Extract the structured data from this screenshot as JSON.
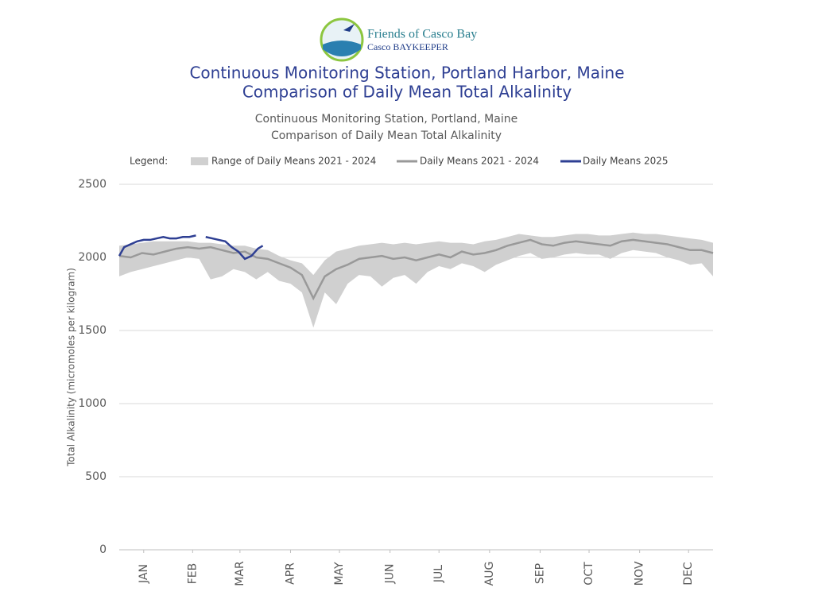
{
  "logo": {
    "name": "Friends of Casco Bay",
    "sub": "Casco BAYKEEPER"
  },
  "chart_data": {
    "type": "line",
    "title": "Continuous Monitoring Station, Portland Harbor, Maine",
    "subtitle": "Comparison of Daily Mean Total Alkalinity",
    "inner_title": "Continuous Monitoring Station, Portland, Maine",
    "inner_subtitle": "Comparison of Daily Mean Total Alkalinity",
    "legend_label": "Legend:",
    "y_label": "Total Alkalinity (micromoles per kilogram)",
    "xlim": [
      1,
      365
    ],
    "xticks": [
      {
        "value": 16,
        "label": "JAN"
      },
      {
        "value": 46,
        "label": "FEB"
      },
      {
        "value": 75,
        "label": "MAR"
      },
      {
        "value": 106,
        "label": "APR"
      },
      {
        "value": 136,
        "label": "MAY"
      },
      {
        "value": 167,
        "label": "JUN"
      },
      {
        "value": 197,
        "label": "JUL"
      },
      {
        "value": 228,
        "label": "AUG"
      },
      {
        "value": 259,
        "label": "SEP"
      },
      {
        "value": 289,
        "label": "OCT"
      },
      {
        "value": 320,
        "label": "NOV"
      },
      {
        "value": 350,
        "label": "DEC"
      }
    ],
    "ylim": [
      0,
      2500
    ],
    "yticks": [
      0,
      500,
      1000,
      1500,
      2000,
      2500
    ],
    "grid": true,
    "band": {
      "name": "Range of Daily Means 2021 - 2024",
      "color": "#d0d0d0",
      "x": [
        1,
        8,
        15,
        22,
        29,
        36,
        43,
        50,
        57,
        64,
        71,
        78,
        85,
        92,
        99,
        106,
        113,
        120,
        127,
        134,
        141,
        148,
        155,
        162,
        169,
        176,
        183,
        190,
        197,
        204,
        211,
        218,
        225,
        232,
        239,
        246,
        253,
        260,
        267,
        274,
        281,
        288,
        295,
        302,
        309,
        316,
        323,
        330,
        337,
        344,
        351,
        358,
        365
      ],
      "upper": [
        2080,
        2090,
        2100,
        2110,
        2110,
        2110,
        2110,
        2100,
        2100,
        2090,
        2080,
        2080,
        2060,
        2050,
        2010,
        1980,
        1960,
        1880,
        1980,
        2040,
        2060,
        2080,
        2090,
        2100,
        2090,
        2100,
        2090,
        2100,
        2110,
        2100,
        2100,
        2090,
        2110,
        2120,
        2140,
        2160,
        2150,
        2140,
        2140,
        2150,
        2160,
        2160,
        2150,
        2150,
        2160,
        2170,
        2160,
        2160,
        2150,
        2140,
        2130,
        2120,
        2100
      ],
      "lower": [
        1870,
        1900,
        1920,
        1940,
        1960,
        1980,
        2000,
        1990,
        1850,
        1870,
        1920,
        1900,
        1850,
        1900,
        1840,
        1820,
        1760,
        1520,
        1760,
        1680,
        1820,
        1880,
        1870,
        1800,
        1860,
        1880,
        1820,
        1900,
        1940,
        1920,
        1960,
        1940,
        1900,
        1950,
        1980,
        2010,
        2030,
        1990,
        2000,
        2020,
        2030,
        2020,
        2020,
        1990,
        2030,
        2050,
        2040,
        2030,
        2000,
        1980,
        1950,
        1960,
        1870
      ]
    },
    "series": [
      {
        "name": "Daily Means 2021 - 2024",
        "color": "#999999",
        "x": [
          1,
          8,
          15,
          22,
          29,
          36,
          43,
          50,
          57,
          64,
          71,
          78,
          85,
          92,
          99,
          106,
          113,
          120,
          127,
          134,
          141,
          148,
          155,
          162,
          169,
          176,
          183,
          190,
          197,
          204,
          211,
          218,
          225,
          232,
          239,
          246,
          253,
          260,
          267,
          274,
          281,
          288,
          295,
          302,
          309,
          316,
          323,
          330,
          337,
          344,
          351,
          358,
          365
        ],
        "values": [
          2010,
          2000,
          2030,
          2020,
          2040,
          2060,
          2070,
          2060,
          2070,
          2050,
          2030,
          2040,
          2000,
          1990,
          1960,
          1930,
          1880,
          1720,
          1870,
          1920,
          1950,
          1990,
          2000,
          2010,
          1990,
          2000,
          1980,
          2000,
          2020,
          2000,
          2040,
          2020,
          2030,
          2050,
          2080,
          2100,
          2120,
          2090,
          2080,
          2100,
          2110,
          2100,
          2090,
          2080,
          2110,
          2120,
          2110,
          2100,
          2090,
          2070,
          2050,
          2050,
          2030
        ]
      },
      {
        "name": "Daily Means 2025",
        "color": "#2e3f93",
        "x": [
          1,
          4,
          8,
          12,
          16,
          20,
          24,
          28,
          32,
          36,
          40,
          44,
          48,
          51,
          54,
          58,
          62,
          66,
          70,
          74,
          78,
          82,
          86,
          89
        ],
        "values": [
          2010,
          2070,
          2090,
          2110,
          2120,
          2120,
          2130,
          2140,
          2130,
          2130,
          2140,
          2140,
          2150,
          null,
          2140,
          2130,
          2120,
          2110,
          2070,
          2040,
          1990,
          2010,
          2060,
          2080
        ]
      }
    ]
  }
}
